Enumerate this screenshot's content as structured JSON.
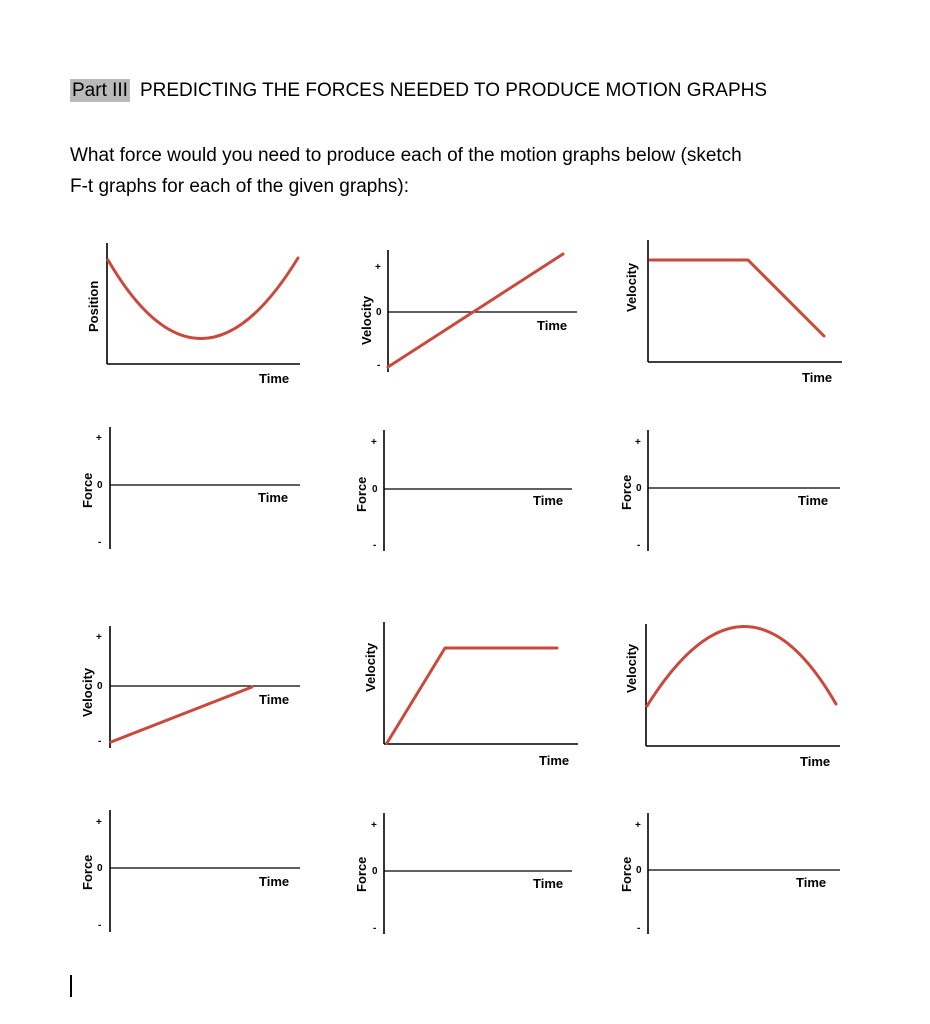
{
  "heading": {
    "part": "Part III",
    "title": "PREDICTING THE FORCES NEEDED TO PRODUCE MOTION GRAPHS"
  },
  "question": {
    "line1": "What force would you need to produce each of the motion graphs below (sketch",
    "line2": "F-t graphs for each of the given graphs):"
  },
  "labels": {
    "time": "Time",
    "position": "Position",
    "velocity": "Velocity",
    "force": "Force",
    "plus": "+",
    "zero": "0",
    "minus": "-"
  },
  "colors": {
    "curve": "#c94a3c",
    "axis": "#000000",
    "highlight": "#b9b9b9"
  },
  "chart_data": [
    {
      "type": "line",
      "ylabel": "Position",
      "xlabel": "Time",
      "shape": "parabola opening upward"
    },
    {
      "type": "line",
      "ylabel": "Velocity",
      "xlabel": "Time",
      "shape": "straight line from negative to positive"
    },
    {
      "type": "line",
      "ylabel": "Velocity",
      "xlabel": "Time",
      "shape": "constant then decreasing"
    },
    {
      "type": "line",
      "ylabel": "Force",
      "xlabel": "Time",
      "shape": "blank"
    },
    {
      "type": "line",
      "ylabel": "Force",
      "xlabel": "Time",
      "shape": "blank"
    },
    {
      "type": "line",
      "ylabel": "Force",
      "xlabel": "Time",
      "shape": "blank"
    },
    {
      "type": "line",
      "ylabel": "Velocity",
      "xlabel": "Time",
      "shape": "straight line from negative rising to zero"
    },
    {
      "type": "line",
      "ylabel": "Velocity",
      "xlabel": "Time",
      "shape": "increasing then constant"
    },
    {
      "type": "line",
      "ylabel": "Velocity",
      "xlabel": "Time",
      "shape": "parabola opening downward"
    },
    {
      "type": "line",
      "ylabel": "Force",
      "xlabel": "Time",
      "shape": "blank"
    },
    {
      "type": "line",
      "ylabel": "Force",
      "xlabel": "Time",
      "shape": "blank"
    },
    {
      "type": "line",
      "ylabel": "Force",
      "xlabel": "Time",
      "shape": "blank"
    }
  ]
}
